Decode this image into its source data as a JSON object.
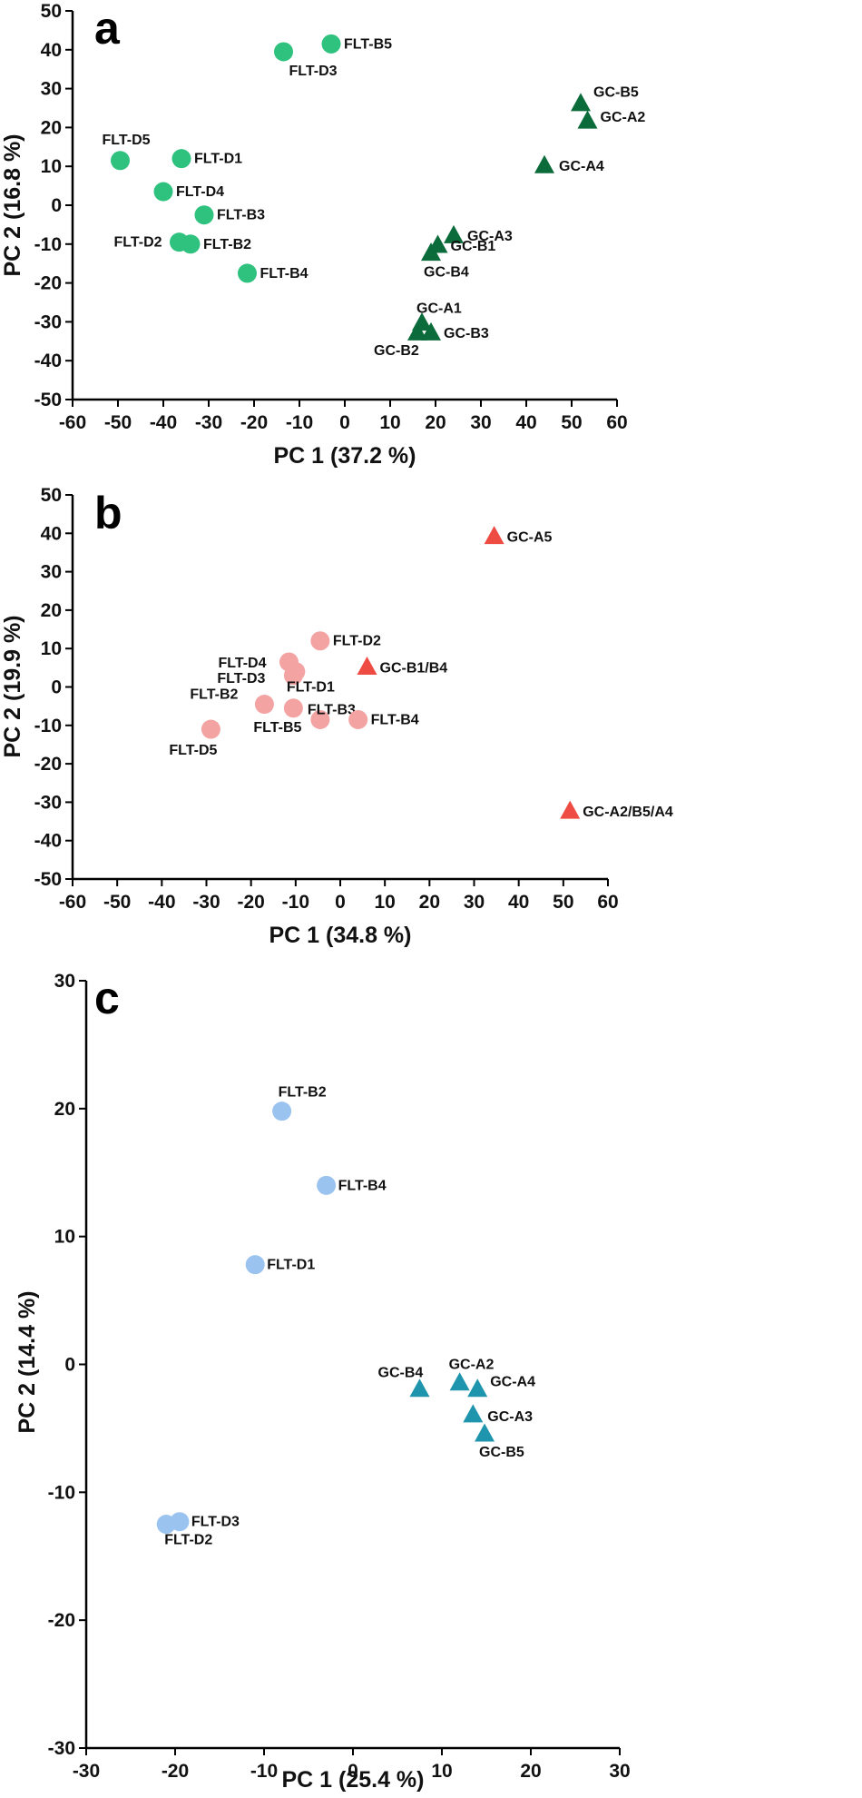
{
  "chart_data": [
    {
      "panel": "a",
      "type": "scatter",
      "xlabel": "PC 1 (37.2 %)",
      "ylabel": "PC 2 (16.8 %)",
      "xlim": [
        -60,
        60
      ],
      "ylim": [
        -50,
        50
      ],
      "xticks": [
        -60,
        -50,
        -40,
        -30,
        -20,
        -10,
        0,
        10,
        20,
        30,
        40,
        50,
        60
      ],
      "yticks": [
        -50,
        -40,
        -30,
        -20,
        -10,
        0,
        10,
        20,
        30,
        40,
        50
      ],
      "grid": false,
      "series": [
        {
          "marker": "circle",
          "color": "#2ec27e",
          "points": [
            {
              "label": "FLT-B5",
              "x": -3,
              "y": 41.5
            },
            {
              "label": "FLT-D3",
              "x": -13.5,
              "y": 39.5
            },
            {
              "label": "FLT-D5",
              "x": -49.5,
              "y": 11.5
            },
            {
              "label": "FLT-D1",
              "x": -36,
              "y": 12
            },
            {
              "label": "FLT-D4",
              "x": -40,
              "y": 3.5
            },
            {
              "label": "FLT-B3",
              "x": -31,
              "y": -2.5
            },
            {
              "label": "FLT-D2",
              "x": -36.5,
              "y": -9.5
            },
            {
              "label": "FLT-B2",
              "x": -34,
              "y": -10
            },
            {
              "label": "FLT-B4",
              "x": -21.5,
              "y": -17.5
            }
          ]
        },
        {
          "marker": "triangle",
          "color": "#0b6b3a",
          "points": [
            {
              "label": "GC-B5",
              "x": 52,
              "y": 26
            },
            {
              "label": "GC-A2",
              "x": 53.5,
              "y": 21.5
            },
            {
              "label": "GC-A4",
              "x": 44,
              "y": 10
            },
            {
              "label": "GC-A3",
              "x": 24,
              "y": -8
            },
            {
              "label": "GC-B1",
              "x": 20.5,
              "y": -10.5
            },
            {
              "label": "GC-B4",
              "x": 19,
              "y": -12.5
            },
            {
              "label": "GC-A1",
              "x": 17,
              "y": -30.5
            },
            {
              "label": "GC-B2",
              "x": 16,
              "y": -33
            },
            {
              "label": "GC-B3",
              "x": 19,
              "y": -33
            }
          ]
        }
      ]
    },
    {
      "panel": "b",
      "type": "scatter",
      "xlabel": "PC 1 (34.8 %)",
      "ylabel": "PC 2 (19.9 %)",
      "xlim": [
        -60,
        60
      ],
      "ylim": [
        -50,
        50
      ],
      "xticks": [
        -60,
        -50,
        -40,
        -30,
        -20,
        -10,
        0,
        10,
        20,
        30,
        40,
        50,
        60
      ],
      "yticks": [
        -50,
        -40,
        -30,
        -20,
        -10,
        0,
        10,
        20,
        30,
        40,
        50
      ],
      "grid": false,
      "series": [
        {
          "marker": "circle",
          "color": "#f4a3a3",
          "points": [
            {
              "label": "FLT-D2",
              "x": -4.5,
              "y": 12
            },
            {
              "label": "FLT-D4",
              "x": -11.5,
              "y": 6.5
            },
            {
              "label": "FLT-D3",
              "x": -10.5,
              "y": 3
            },
            {
              "label": "FLT-D1",
              "x": -10,
              "y": 4
            },
            {
              "label": "FLT-B2",
              "x": -17,
              "y": -4.5
            },
            {
              "label": "FLT-B5",
              "x": -10.5,
              "y": -5.5
            },
            {
              "label": "FLT-B3",
              "x": -4.5,
              "y": -8.5
            },
            {
              "label": "FLT-B4",
              "x": 4,
              "y": -8.5
            },
            {
              "label": "FLT-D5",
              "x": -29,
              "y": -11
            }
          ]
        },
        {
          "marker": "triangle",
          "color": "#ee4b43",
          "points": [
            {
              "label": "GC-A5",
              "x": 34.5,
              "y": 39
            },
            {
              "label": "GC-B1/B4",
              "x": 6,
              "y": 5
            },
            {
              "label": "GC-A2/B5/A4",
              "x": 51.5,
              "y": -32.5
            }
          ]
        }
      ]
    },
    {
      "panel": "c",
      "type": "scatter",
      "xlabel": "PC 1 (25.4 %)",
      "ylabel": "PC 2 (14.4 %)",
      "xlim": [
        -30,
        30
      ],
      "ylim": [
        -30,
        30
      ],
      "xticks": [
        -30,
        -20,
        -10,
        0,
        10,
        20,
        30
      ],
      "yticks": [
        -30,
        -20,
        -10,
        0,
        10,
        20,
        30
      ],
      "grid": false,
      "series": [
        {
          "marker": "circle",
          "color": "#9ac3f0",
          "points": [
            {
              "label": "FLT-B2",
              "x": -8,
              "y": 19.8
            },
            {
              "label": "FLT-B4",
              "x": -3,
              "y": 14
            },
            {
              "label": "FLT-D1",
              "x": -11,
              "y": 7.8
            },
            {
              "label": "FLT-D3",
              "x": -19.5,
              "y": -12.3
            },
            {
              "label": "FLT-D2",
              "x": -21,
              "y": -12.5
            }
          ]
        },
        {
          "marker": "triangle",
          "color": "#1e95ac",
          "points": [
            {
              "label": "GC-B4",
              "x": 7.5,
              "y": -2
            },
            {
              "label": "GC-A2",
              "x": 12,
              "y": -1.5
            },
            {
              "label": "GC-A4",
              "x": 14,
              "y": -2
            },
            {
              "label": "GC-A3",
              "x": 13.5,
              "y": -4
            },
            {
              "label": "GC-B5",
              "x": 14.8,
              "y": -5.5
            }
          ]
        }
      ]
    }
  ]
}
